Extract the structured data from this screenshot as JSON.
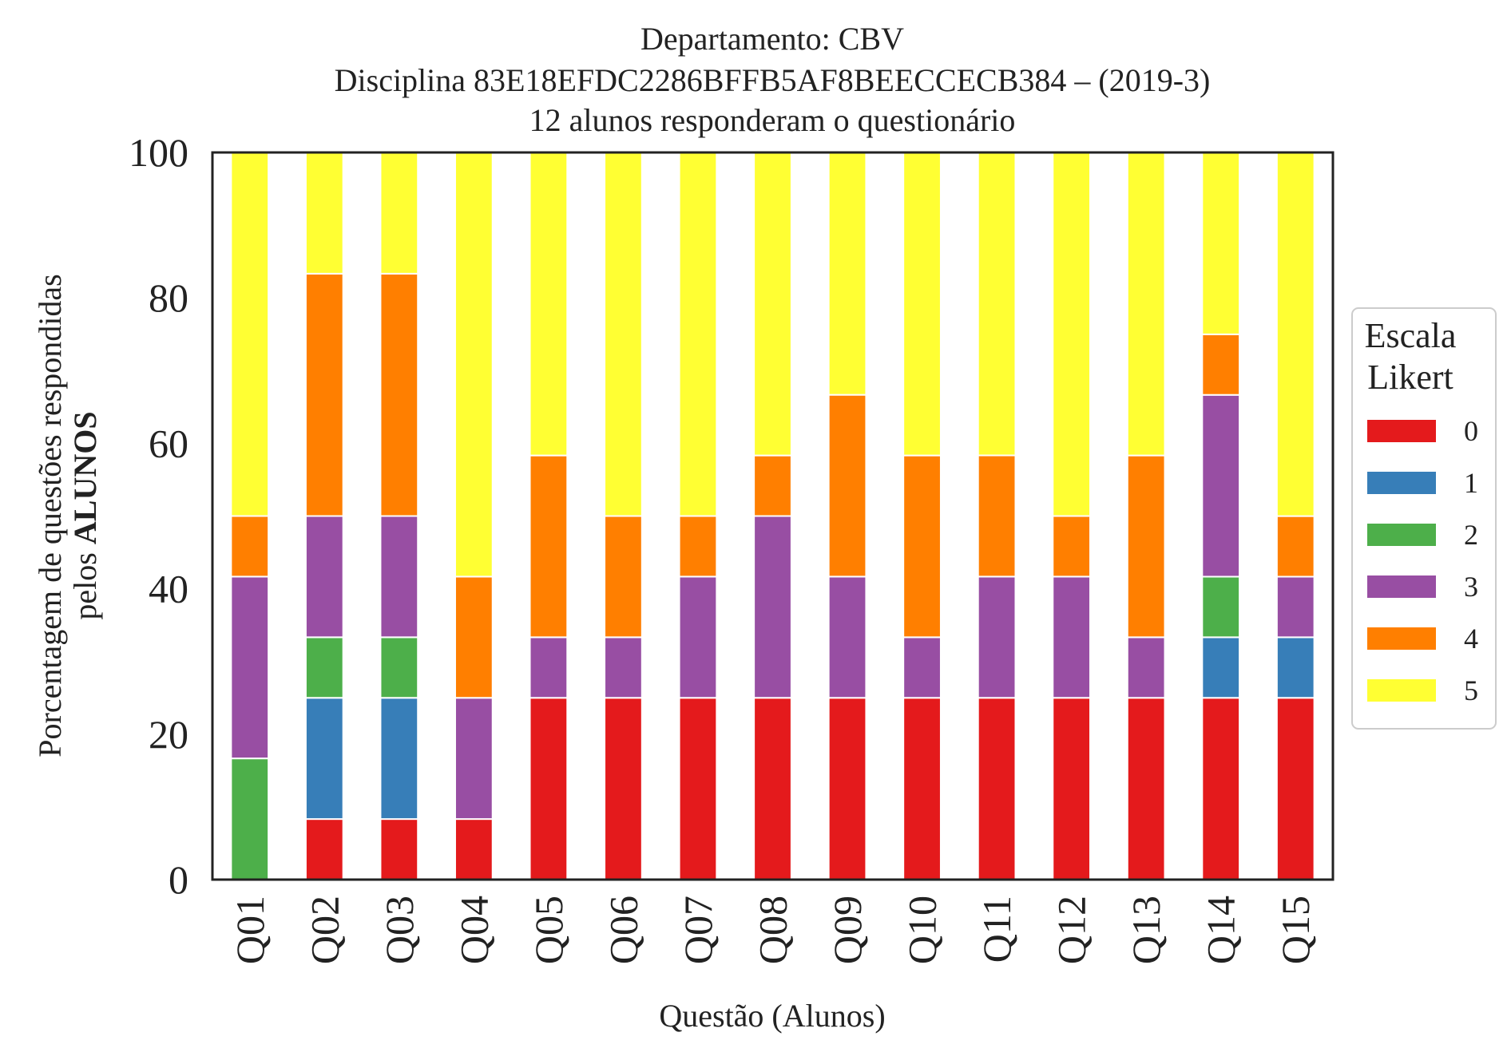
{
  "chart_data": {
    "type": "bar",
    "stacked": true,
    "title_lines": [
      "Departamento: CBV",
      "Disciplina 83E18EFDC2286BFFB5AF8BEECCECB384 – (2019-3)",
      "12 alunos responderam o questionário"
    ],
    "xlabel": "Questão (Alunos)",
    "ylabel_line1": "Porcentagem de questões respondidas",
    "ylabel_line2_prefix": "pelos ",
    "ylabel_line2_bold": "ALUNOS",
    "ylim": [
      0,
      100
    ],
    "yticks": [
      "0",
      "20",
      "40",
      "60",
      "80",
      "100"
    ],
    "grid": false,
    "legend_title_lines": [
      "Escala",
      "Likert"
    ],
    "legend_placement": "center-right outside",
    "categories": [
      "Q01",
      "Q02",
      "Q03",
      "Q04",
      "Q05",
      "Q06",
      "Q07",
      "Q08",
      "Q09",
      "Q10",
      "Q11",
      "Q12",
      "Q13",
      "Q14",
      "Q15"
    ],
    "series": [
      {
        "name": "0",
        "color": "#e41a1c",
        "values": [
          0,
          8.33,
          8.33,
          8.33,
          25,
          25,
          25,
          25,
          25,
          25,
          25,
          25,
          25,
          25,
          25
        ]
      },
      {
        "name": "1",
        "color": "#377eb8",
        "values": [
          0,
          16.67,
          16.67,
          0,
          0,
          0,
          0,
          0,
          0,
          0,
          0,
          0,
          0,
          8.33,
          8.33
        ]
      },
      {
        "name": "2",
        "color": "#4daf4a",
        "values": [
          16.67,
          8.33,
          8.33,
          0,
          0,
          0,
          0,
          0,
          0,
          0,
          0,
          0,
          0,
          8.33,
          0
        ]
      },
      {
        "name": "3",
        "color": "#984ea3",
        "values": [
          25,
          16.67,
          16.67,
          16.67,
          8.33,
          8.33,
          16.67,
          25,
          16.67,
          8.33,
          16.67,
          16.67,
          8.33,
          25,
          8.33
        ]
      },
      {
        "name": "4",
        "color": "#ff7f00",
        "values": [
          8.33,
          33.33,
          33.33,
          16.67,
          25,
          16.67,
          8.33,
          8.33,
          25,
          25,
          16.67,
          8.33,
          25,
          8.33,
          8.33
        ]
      },
      {
        "name": "5",
        "color": "#ffff33",
        "values": [
          50,
          16.67,
          16.67,
          58.33,
          41.67,
          50,
          50,
          41.67,
          33.33,
          41.67,
          41.67,
          50,
          41.67,
          25,
          50
        ]
      }
    ]
  }
}
